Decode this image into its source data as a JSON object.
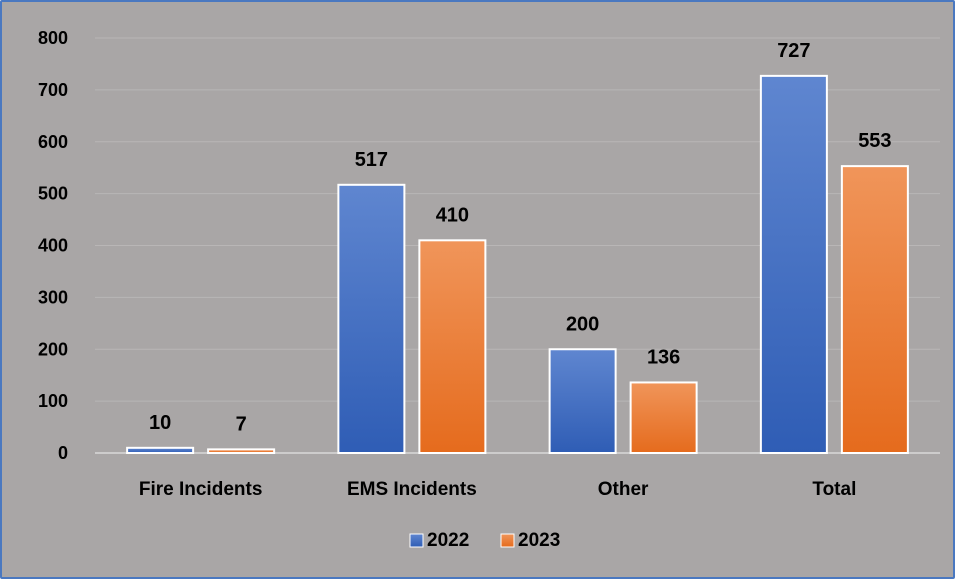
{
  "chart_data": {
    "type": "bar",
    "title": "",
    "xlabel": "",
    "ylabel": "",
    "categories": [
      "Fire Incidents",
      "EMS Incidents",
      "Other",
      "Total"
    ],
    "series": [
      {
        "name": "2022",
        "values": [
          10,
          517,
          200,
          727
        ],
        "color": "#4472c4"
      },
      {
        "name": "2023",
        "values": [
          7,
          410,
          136,
          553
        ],
        "color": "#ed7d31"
      }
    ],
    "ylim": [
      0,
      800
    ],
    "yticks": [
      0,
      100,
      200,
      300,
      400,
      500,
      600,
      700,
      800
    ],
    "grid": true,
    "legend": "bottom",
    "data_labels": true
  }
}
